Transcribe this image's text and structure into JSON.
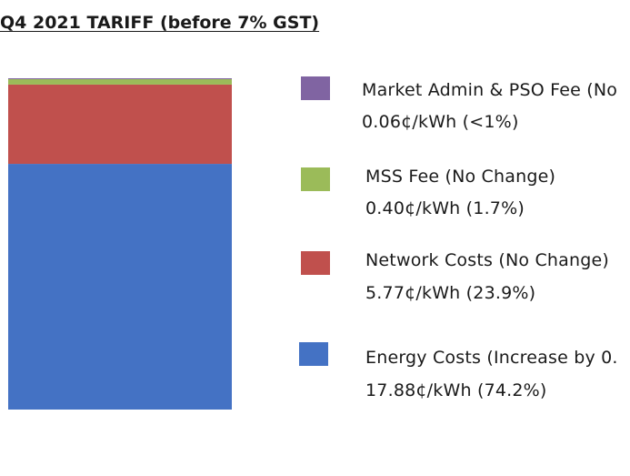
{
  "chart_data": {
    "type": "bar",
    "title": "Q4 2021 TARIFF (before 7% GST)",
    "xlabel": "",
    "ylabel": "",
    "unit": "¢/kWh",
    "stacked": true,
    "total": 24.11,
    "series": [
      {
        "name": "Energy Costs (Increase by 0.",
        "value": 17.88,
        "value_label": "17.88¢/kWh (74.2%)",
        "color": "#4472c4"
      },
      {
        "name": "Network Costs (No Change)",
        "value": 5.77,
        "value_label": "5.77¢/kWh (23.9%)",
        "color": "#c0504d"
      },
      {
        "name": "MSS Fee (No Change)",
        "value": 0.4,
        "value_label": "0.40¢/kWh (1.7%)",
        "color": "#9bbb59"
      },
      {
        "name": "Market Admin & PSO Fee (No",
        "value": 0.06,
        "value_label": "0.06¢/kWh (<1%)",
        "color": "#8064a2"
      }
    ],
    "legend_order": [
      3,
      2,
      1,
      0
    ]
  }
}
